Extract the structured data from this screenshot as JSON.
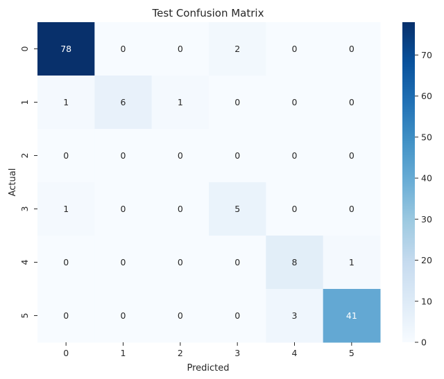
{
  "chart_data": {
    "type": "heatmap",
    "title": "Test Confusion Matrix",
    "xlabel": "Predicted",
    "ylabel": "Actual",
    "x_categories": [
      "0",
      "1",
      "2",
      "3",
      "4",
      "5"
    ],
    "y_categories": [
      "0",
      "1",
      "2",
      "3",
      "4",
      "5"
    ],
    "values": [
      [
        78,
        0,
        0,
        2,
        0,
        0
      ],
      [
        1,
        6,
        1,
        0,
        0,
        0
      ],
      [
        0,
        0,
        0,
        0,
        0,
        0
      ],
      [
        1,
        0,
        0,
        5,
        0,
        0
      ],
      [
        0,
        0,
        0,
        0,
        8,
        1
      ],
      [
        0,
        0,
        0,
        0,
        3,
        41
      ]
    ],
    "colormap": "Blues",
    "vmin": 0,
    "vmax": 78,
    "colorbar_ticks": [
      0,
      10,
      20,
      30,
      40,
      50,
      60,
      70
    ],
    "colorbar_tick_labels": [
      "0",
      "10",
      "20",
      "30",
      "40",
      "50",
      "60",
      "70"
    ],
    "annotations": true,
    "colors": {
      "low": "#f7fbff",
      "high": "#08306b",
      "text_dark": "#262626",
      "text_light": "#ffffff"
    }
  }
}
